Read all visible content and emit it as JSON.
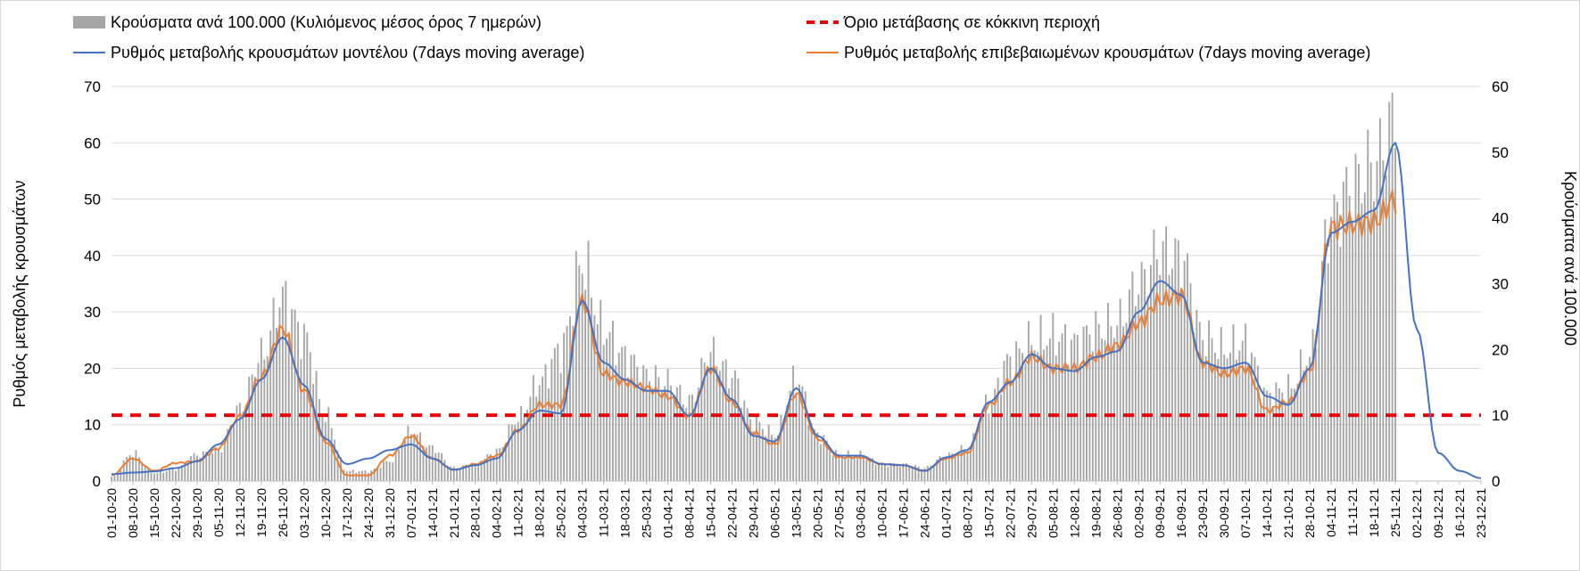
{
  "chart_data": {
    "type": "bar+line",
    "legend": [
      {
        "label": "Κρούσματα ανά 100.000 (Κυλιόμενος μέσος όρος 7 ημερών)",
        "kind": "bar",
        "color": "#a6a6a6"
      },
      {
        "label": "Όριο μετάβασης σε κόκκινη περιοχή",
        "kind": "dashed",
        "color": "#e8000b"
      },
      {
        "label": "Ρυθμός μεταβολής κρουσμάτων μοντέλου (7days moving average)",
        "kind": "line",
        "color": "#4472c4"
      },
      {
        "label": "Ρυθμός μεταβολής επιβεβαιωμένων κρουσμάτων (7days moving average)",
        "kind": "line",
        "color": "#ed7d31"
      }
    ],
    "ylabel_left": "Ρυθμός μεταβολής κρουσμάτων",
    "ylabel_right": "Κρούσματα ανά 100.000",
    "y_left": {
      "min": 0,
      "max": 70,
      "step": 10
    },
    "y_right": {
      "min": 0,
      "max": 60,
      "step": 10
    },
    "x_labels": [
      "01-10-20",
      "08-10-20",
      "15-10-20",
      "22-10-20",
      "29-10-20",
      "05-11-20",
      "12-11-20",
      "19-11-20",
      "26-11-20",
      "03-12-20",
      "10-12-20",
      "17-12-20",
      "24-12-20",
      "31-12-20",
      "07-01-21",
      "14-01-21",
      "21-01-21",
      "28-01-21",
      "04-02-21",
      "11-02-21",
      "18-02-21",
      "25-02-21",
      "04-03-21",
      "11-03-21",
      "18-03-21",
      "25-03-21",
      "01-04-21",
      "08-04-21",
      "15-04-21",
      "22-04-21",
      "29-04-21",
      "06-05-21",
      "13-05-21",
      "20-05-21",
      "27-05-21",
      "03-06-21",
      "10-06-21",
      "17-06-21",
      "24-06-21",
      "01-07-21",
      "08-07-21",
      "15-07-21",
      "22-07-21",
      "29-07-21",
      "05-08-21",
      "12-08-21",
      "19-08-21",
      "26-08-21",
      "02-09-21",
      "09-09-21",
      "16-09-21",
      "23-09-21",
      "30-09-21",
      "07-10-21",
      "14-10-21",
      "21-10-21",
      "28-10-21",
      "04-11-21",
      "11-11-21",
      "18-11-21",
      "25-11-21",
      "02-12-21",
      "09-12-21",
      "16-12-21",
      "23-12-21"
    ],
    "threshold_right": 10,
    "bars_weekly": [
      0.6,
      4.2,
      1.2,
      1.8,
      4.0,
      4.6,
      11.0,
      19.0,
      28.0,
      22.0,
      10.0,
      1.5,
      1.5,
      3.0,
      7.5,
      5.0,
      2.0,
      2.5,
      4.5,
      9.5,
      15.0,
      20.0,
      33.0,
      23.0,
      19.0,
      16.0,
      15.0,
      12.0,
      19.5,
      16.0,
      9.0,
      7.0,
      15.5,
      7.0,
      4.0,
      4.0,
      2.5,
      2.5,
      2.0,
      3.8,
      5.0,
      12.0,
      18.5,
      21.0,
      22.0,
      21.0,
      23.0,
      24.0,
      30.0,
      35.0,
      34.0,
      22.0,
      20.0,
      21.0,
      13.0,
      14.0,
      19.0,
      40.0,
      45.0,
      48.0,
      55.0
    ],
    "blue_weekly": [
      1.2,
      1.5,
      1.7,
      2.3,
      3.5,
      6.5,
      11.0,
      18.0,
      25.5,
      17.0,
      7.5,
      3.0,
      4.0,
      5.5,
      6.5,
      4.0,
      2.0,
      2.8,
      4.0,
      9.0,
      12.5,
      12.0,
      32.0,
      21.0,
      18.0,
      16.0,
      16.0,
      11.5,
      20.0,
      14.5,
      8.0,
      7.0,
      16.5,
      8.0,
      4.5,
      4.5,
      3.0,
      2.8,
      1.8,
      4.2,
      5.5,
      14.0,
      17.5,
      22.5,
      20.0,
      19.5,
      22.0,
      23.0,
      30.0,
      35.5,
      33.0,
      21.0,
      20.0,
      21.0,
      15.0,
      13.5,
      20.0,
      44.0,
      46.0,
      48.0,
      60.0,
      27.0,
      5.0,
      1.8,
      0.5
    ],
    "orange_weekly": [
      1.0,
      4.0,
      1.8,
      3.2,
      3.5,
      5.8,
      11.5,
      18.5,
      27.0,
      16.0,
      7.0,
      1.0,
      1.0,
      4.5,
      8.0,
      4.0,
      2.0,
      3.0,
      4.5,
      9.0,
      13.5,
      13.5,
      32.0,
      19.0,
      17.5,
      16.5,
      15.0,
      11.5,
      20.0,
      14.0,
      8.5,
      6.5,
      15.5,
      7.5,
      4.2,
      4.2,
      3.0,
      2.8,
      1.8,
      4.0,
      5.0,
      13.5,
      17.5,
      22.0,
      20.0,
      20.0,
      22.0,
      24.0,
      28.0,
      32.0,
      33.0,
      21.0,
      19.0,
      20.0,
      12.5,
      14.0,
      19.5,
      45.0,
      45.5,
      46.0,
      50.0
    ]
  }
}
